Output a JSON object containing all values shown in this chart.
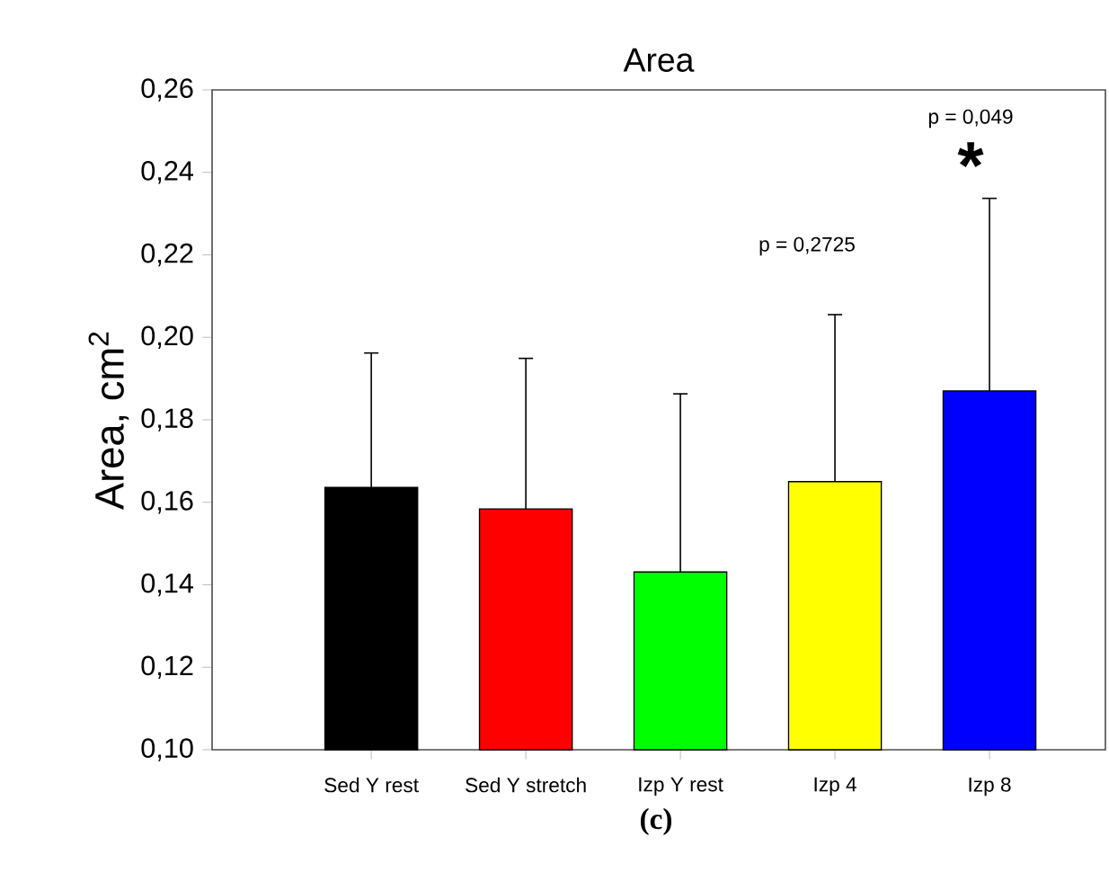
{
  "chart_data": {
    "type": "bar",
    "title": "Area",
    "ylabel": "Area, cm$^{2}$",
    "categories": [
      "Sed Y rest",
      "Sed Y stretch",
      "Izp Y rest",
      "Izp 4",
      "Izp 8"
    ],
    "values": [
      0.1636,
      0.1584,
      0.1431,
      0.165,
      0.187
    ],
    "colors": [
      "#000000",
      "#ff0000",
      "#00ff00",
      "#ffff00",
      "#0000ff"
    ],
    "errors": [
      [
        0.1636,
        0.1962
      ],
      [
        0.1584,
        0.1949
      ],
      [
        0.1431,
        0.1863
      ],
      [
        0.165,
        0.2055
      ],
      [
        0.187,
        0.2337
      ]
    ],
    "ylim": [
      0.1,
      0.26
    ],
    "yticks": [
      {
        "value": 0.1,
        "label": "0,10"
      },
      {
        "value": 0.12,
        "label": "0,12"
      },
      {
        "value": 0.14,
        "label": "0,14"
      },
      {
        "value": 0.16,
        "label": "0,16"
      },
      {
        "value": 0.18,
        "label": "0,18"
      },
      {
        "value": 0.2,
        "label": "0,20"
      },
      {
        "value": 0.22,
        "label": "0,22"
      },
      {
        "value": 0.24,
        "label": "0,24"
      },
      {
        "value": 0.26,
        "label": "0,26"
      }
    ],
    "grid": false,
    "annotations": [
      "p = 0,2725",
      "p = 0,049",
      "*",
      "(c)"
    ]
  }
}
